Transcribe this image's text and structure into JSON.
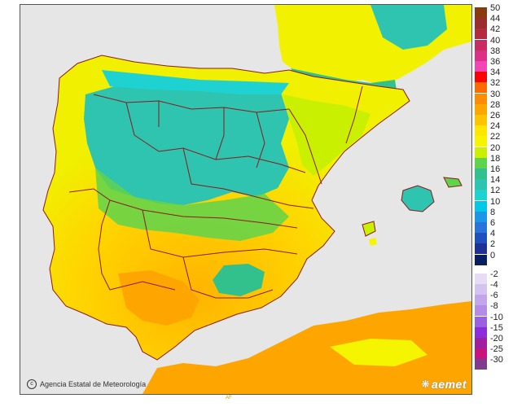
{
  "credit": {
    "text": "Agencia Estatal de Meteorología",
    "icon": "copyright-icon"
  },
  "logo": {
    "text": "aemet"
  },
  "footer_mark": "AF",
  "legend": {
    "positive": [
      {
        "label": "50",
        "color": "#8b3a0f"
      },
      {
        "label": "44",
        "color": "#9c2d2d"
      },
      {
        "label": "42",
        "color": "#b32b3e"
      },
      {
        "label": "40",
        "color": "#c92c62"
      },
      {
        "label": "38",
        "color": "#dd2f86"
      },
      {
        "label": "36",
        "color": "#f246b4"
      },
      {
        "label": "34",
        "color": "#ff0000"
      },
      {
        "label": "32",
        "color": "#ff6a00"
      },
      {
        "label": "30",
        "color": "#ff8c00"
      },
      {
        "label": "28",
        "color": "#ffa500"
      },
      {
        "label": "26",
        "color": "#ffc400"
      },
      {
        "label": "24",
        "color": "#ffe600"
      },
      {
        "label": "22",
        "color": "#f5f500"
      },
      {
        "label": "20",
        "color": "#c8f000"
      },
      {
        "label": "18",
        "color": "#5ed44c"
      },
      {
        "label": "16",
        "color": "#32c08c"
      },
      {
        "label": "14",
        "color": "#2ec4b0"
      },
      {
        "label": "12",
        "color": "#1ed2d2"
      },
      {
        "label": "10",
        "color": "#00c8e6"
      },
      {
        "label": "8",
        "color": "#1e96e6"
      },
      {
        "label": "6",
        "color": "#2873dc"
      },
      {
        "label": "4",
        "color": "#1e50be"
      },
      {
        "label": "2",
        "color": "#1e3296"
      },
      {
        "label": "0",
        "color": "#0a1e64"
      }
    ],
    "negative": [
      {
        "label": "-2",
        "color": "#e6dcf5"
      },
      {
        "label": "-4",
        "color": "#d2c3f0"
      },
      {
        "label": "-6",
        "color": "#c3a5ec"
      },
      {
        "label": "-8",
        "color": "#b48ce6"
      },
      {
        "label": "-10",
        "color": "#9b5fe1"
      },
      {
        "label": "-15",
        "color": "#8c2ddc"
      },
      {
        "label": "-20",
        "color": "#a01ea0"
      },
      {
        "label": "-25",
        "color": "#c8147d"
      },
      {
        "label": "-30",
        "color": "#7d3c8c"
      }
    ]
  }
}
